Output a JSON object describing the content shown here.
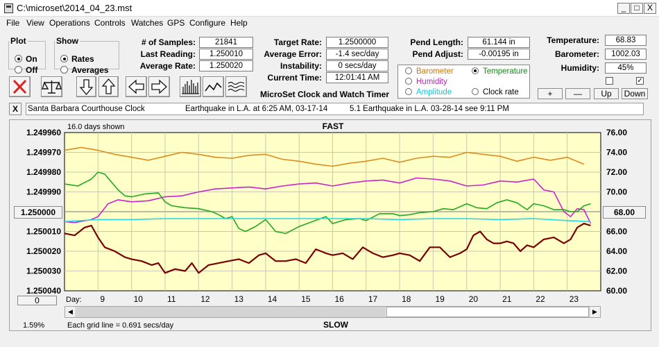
{
  "window": {
    "title": "C:\\microset\\2014_04_23.mst",
    "minimize": "_",
    "maximize": "□",
    "close": "X"
  },
  "menu": [
    "File",
    "View",
    "Operations",
    "Controls",
    "Watches",
    "GPS",
    "Configure",
    "Help"
  ],
  "plot": {
    "legend": "Plot",
    "on": "On",
    "off": "Off",
    "selected": "On"
  },
  "show": {
    "legend": "Show",
    "rates": "Rates",
    "averages": "Averages",
    "selected": "Rates"
  },
  "stats": {
    "samples_label": "# of Samples:",
    "samples": "21841",
    "last_label": "Last Reading:",
    "last": "1.250010",
    "avgrate_label": "Average Rate:",
    "avgrate": "1.250020",
    "target_label": "Target Rate:",
    "target": "1.2500000",
    "avgerr_label": "Average Error:",
    "avgerr": "-1.4 sec/day",
    "instab_label": "Instability:",
    "instab": "0 secs/day",
    "time_label": "Current Time:",
    "time": "12:01:41 AM",
    "pendlen_label": "Pend Length:",
    "pendlen": "61.144 in",
    "pendadj_label": "Pend Adjust:",
    "pendadj": "-0.00195 in",
    "temp_label": "Temperature:",
    "temp": "68.83",
    "baro_label": "Barometer:",
    "baro": "1002.03",
    "hum_label": "Humidity:",
    "hum": "45%"
  },
  "app_name": "MicroSet Clock and Watch Timer",
  "sensor": {
    "barometer": "Barometer",
    "temperature": "Temperature",
    "humidity": "Humidity",
    "amplitude": "Amplitude",
    "clockrate": "Clock rate",
    "selected": "Temperature"
  },
  "sensor_buttons": {
    "plus": "+",
    "minus": "—",
    "up": "Up",
    "down": "Down"
  },
  "checkboxes": {
    "left": false,
    "right": true
  },
  "notes": {
    "close": "X",
    "n1": "Santa Barbara Courthouse Clock",
    "n2": "Earthquake in L.A. at 6:25 AM, 03-17-14",
    "n3": "5.1 Earthquake in L.A. 03-28-14  see 9:11 PM"
  },
  "chart_data": {
    "type": "line",
    "fast_label": "FAST",
    "slow_label": "SLOW",
    "days_shown": "16.0 days shown",
    "grid_note": "Each grid line = 0.691 secs/day",
    "percent": "1.59%",
    "day_label": "Day:",
    "left_center_button": "1.250000",
    "right_center_button": "68.00",
    "bottom_left_button": "0",
    "left_ticks": [
      "1.249960",
      "1.249970",
      "1.249980",
      "1.249990",
      "1.250000",
      "1.250010",
      "1.250020",
      "1.250030",
      "1.250040"
    ],
    "right_ticks": [
      "76.00",
      "74.00",
      "72.00",
      "70.00",
      "68.00",
      "66.00",
      "64.00",
      "62.00",
      "60.00"
    ],
    "ylim_left": [
      1.25004,
      1.24996
    ],
    "ylim_right": [
      60,
      76
    ],
    "xlim": [
      8,
      24
    ],
    "x_ticks": [
      "9",
      "10",
      "11",
      "12",
      "13",
      "14",
      "15",
      "16",
      "17",
      "18",
      "19",
      "20",
      "21",
      "22",
      "23"
    ],
    "series": [
      {
        "color": "#e08a1e",
        "axis": "right",
        "x": [
          8.0,
          8.5,
          9.0,
          9.5,
          10.0,
          10.5,
          11.0,
          11.5,
          12.0,
          12.5,
          13.0,
          13.5,
          14.0,
          14.5,
          15.0,
          15.5,
          16.0,
          16.5,
          17.0,
          17.5,
          18.0,
          18.5,
          19.0,
          19.5,
          20.0,
          20.5,
          21.0,
          21.5,
          22.0,
          22.5,
          23.0,
          23.5
        ],
        "y": [
          74.2,
          74.5,
          74.2,
          73.8,
          73.5,
          73.2,
          73.6,
          74.0,
          73.8,
          73.5,
          73.4,
          73.7,
          73.8,
          73.3,
          73.1,
          72.8,
          72.6,
          72.9,
          73.1,
          73.4,
          73.0,
          73.4,
          73.6,
          73.5,
          74.0,
          73.8,
          73.6,
          73.1,
          73.5,
          73.2,
          73.5,
          72.8
        ]
      },
      {
        "color": "#cc22cc",
        "axis": "right",
        "x": [
          8.0,
          8.3,
          8.8,
          9.0,
          9.3,
          9.6,
          10.0,
          10.5,
          11.0,
          11.5,
          12.0,
          12.5,
          13.0,
          13.5,
          14.0,
          14.5,
          15.0,
          15.5,
          16.0,
          16.5,
          17.0,
          17.5,
          18.0,
          18.5,
          19.0,
          19.5,
          20.0,
          20.5,
          21.0,
          21.5,
          22.0,
          22.3,
          22.6,
          22.9,
          23.1,
          23.3,
          23.5,
          23.7
        ],
        "y": [
          67.0,
          66.9,
          67.2,
          67.5,
          68.8,
          69.2,
          69.0,
          69.1,
          69.5,
          69.6,
          70.0,
          70.3,
          70.4,
          70.5,
          70.3,
          70.6,
          70.8,
          70.9,
          70.6,
          70.9,
          71.1,
          71.2,
          70.9,
          71.4,
          71.3,
          71.1,
          70.6,
          70.7,
          71.1,
          71.0,
          71.3,
          70.2,
          70.0,
          68.0,
          67.5,
          68.3,
          68.2,
          66.8
        ]
      },
      {
        "color": "#1faa1f",
        "axis": "right",
        "x": [
          8.0,
          8.4,
          8.8,
          9.0,
          9.2,
          9.4,
          9.6,
          9.8,
          10.0,
          10.4,
          10.8,
          11.0,
          11.2,
          11.6,
          12.0,
          12.4,
          12.6,
          12.8,
          13.0,
          13.2,
          13.4,
          13.7,
          14.0,
          14.3,
          14.6,
          15.0,
          15.4,
          15.8,
          16.0,
          16.4,
          16.8,
          17.0,
          17.4,
          17.8,
          18.0,
          18.3,
          18.6,
          19.0,
          19.3,
          19.6,
          20.0,
          20.3,
          20.6,
          20.9,
          21.2,
          21.5,
          21.8,
          22.0,
          22.3,
          22.6,
          22.9,
          23.1,
          23.3,
          23.5,
          23.7
        ],
        "y": [
          70.8,
          70.6,
          71.3,
          72.0,
          71.8,
          71.0,
          70.2,
          69.6,
          69.5,
          69.8,
          69.9,
          69.0,
          68.6,
          68.4,
          68.3,
          68.0,
          67.7,
          67.3,
          67.5,
          66.3,
          66.0,
          66.5,
          67.2,
          66.0,
          65.8,
          66.5,
          67.0,
          67.5,
          66.8,
          67.2,
          67.3,
          67.1,
          67.8,
          67.8,
          67.6,
          67.7,
          67.9,
          68.0,
          68.3,
          68.2,
          68.8,
          68.4,
          68.3,
          68.9,
          69.2,
          68.9,
          68.2,
          68.8,
          68.6,
          68.2,
          68.2,
          68.0,
          68.0,
          68.6,
          68.8
        ]
      },
      {
        "color": "#22d8e8",
        "axis": "right",
        "x": [
          8.0,
          9.0,
          10.0,
          11.0,
          12.0,
          13.0,
          14.0,
          15.0,
          16.0,
          17.0,
          18.0,
          19.0,
          20.0,
          21.0,
          22.0,
          23.0,
          23.7
        ],
        "y": [
          67.0,
          67.2,
          67.2,
          67.3,
          67.3,
          67.3,
          67.3,
          67.3,
          67.3,
          67.3,
          67.2,
          67.3,
          67.3,
          67.2,
          67.3,
          67.1,
          67.0
        ]
      },
      {
        "color": "#7a0000",
        "axis": "left",
        "x": [
          8.0,
          8.3,
          8.6,
          8.8,
          9.0,
          9.2,
          9.5,
          9.8,
          10.0,
          10.3,
          10.6,
          10.8,
          11.0,
          11.3,
          11.6,
          11.8,
          12.0,
          12.3,
          12.6,
          12.9,
          13.2,
          13.5,
          13.8,
          14.0,
          14.3,
          14.6,
          14.9,
          15.2,
          15.5,
          15.8,
          16.0,
          16.3,
          16.6,
          16.9,
          17.2,
          17.5,
          17.8,
          18.0,
          18.3,
          18.6,
          18.9,
          19.2,
          19.5,
          19.8,
          20.0,
          20.2,
          20.4,
          20.6,
          20.8,
          21.0,
          21.2,
          21.4,
          21.6,
          21.8,
          22.0,
          22.3,
          22.6,
          22.9,
          23.1,
          23.3,
          23.5,
          23.7
        ],
        "y": [
          1.250011,
          1.250012,
          1.250008,
          1.250007,
          1.250013,
          1.250018,
          1.25002,
          1.250023,
          1.250024,
          1.250025,
          1.250027,
          1.250026,
          1.250031,
          1.250029,
          1.25003,
          1.250026,
          1.250031,
          1.250027,
          1.250026,
          1.250025,
          1.250024,
          1.250026,
          1.250022,
          1.250021,
          1.250025,
          1.250025,
          1.250024,
          1.250026,
          1.250019,
          1.250021,
          1.250022,
          1.250021,
          1.250024,
          1.250018,
          1.250021,
          1.250023,
          1.250022,
          1.250021,
          1.250022,
          1.250025,
          1.250018,
          1.250018,
          1.250023,
          1.250021,
          1.250019,
          1.250012,
          1.25001,
          1.250014,
          1.250016,
          1.250016,
          1.250015,
          1.250016,
          1.25002,
          1.250017,
          1.250018,
          1.250014,
          1.250013,
          1.250016,
          1.250014,
          1.250008,
          1.250006,
          1.250007
        ]
      }
    ]
  }
}
